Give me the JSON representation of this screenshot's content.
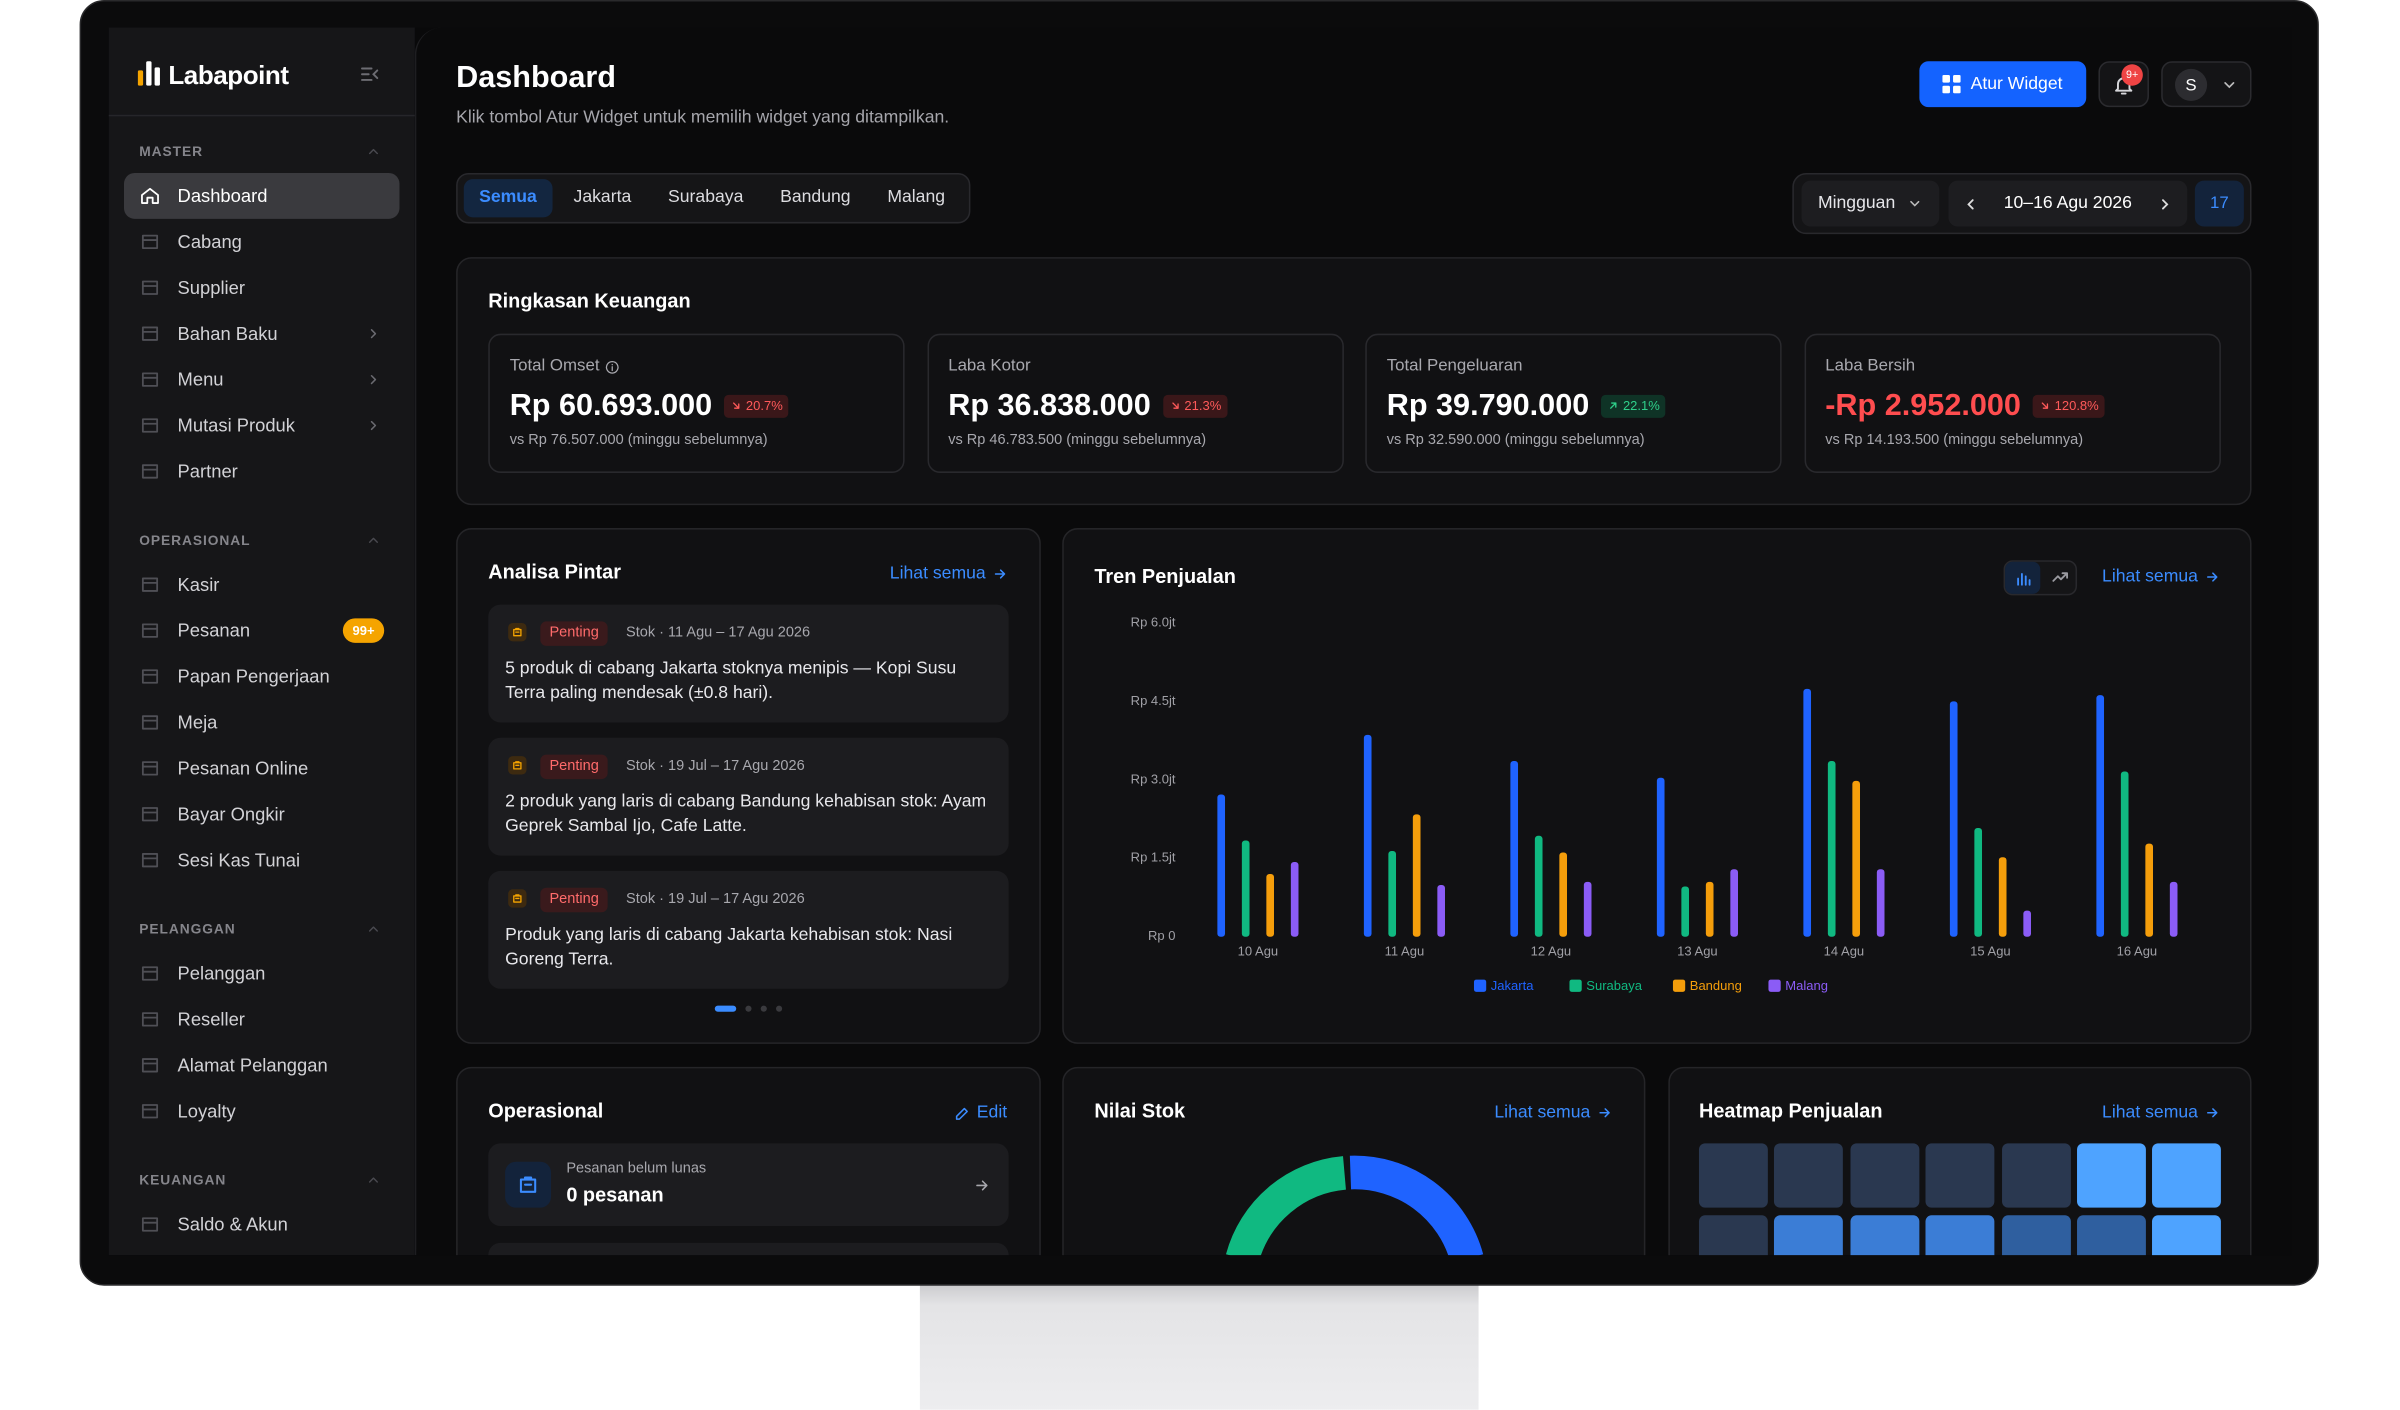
{
  "sidebar": {
    "brand": "Labapoint",
    "sections": [
      {
        "title": "MASTER",
        "items": [
          {
            "label": "Dashboard",
            "active": true
          },
          {
            "label": "Cabang"
          },
          {
            "label": "Supplier"
          },
          {
            "label": "Bahan Baku",
            "submenu": true
          },
          {
            "label": "Menu",
            "submenu": true
          },
          {
            "label": "Mutasi Produk",
            "submenu": true
          },
          {
            "label": "Partner"
          }
        ]
      },
      {
        "title": "OPERASIONAL",
        "items": [
          {
            "label": "Kasir"
          },
          {
            "label": "Pesanan",
            "badge": "99+"
          },
          {
            "label": "Papan Pengerjaan"
          },
          {
            "label": "Meja"
          },
          {
            "label": "Pesanan Online"
          },
          {
            "label": "Bayar Ongkir"
          },
          {
            "label": "Sesi Kas Tunai"
          }
        ]
      },
      {
        "title": "PELANGGAN",
        "items": [
          {
            "label": "Pelanggan"
          },
          {
            "label": "Reseller"
          },
          {
            "label": "Alamat Pelanggan"
          },
          {
            "label": "Loyalty"
          }
        ]
      },
      {
        "title": "KEUANGAN",
        "items": [
          {
            "label": "Saldo & Akun"
          }
        ]
      }
    ]
  },
  "header": {
    "title": "Dashboard",
    "subtitle": "Klik tombol Atur Widget untuk memilih widget yang ditampilkan.",
    "button": "Atur Widget",
    "notification_badge": "9+",
    "avatar": "S"
  },
  "filters": {
    "tabs": [
      "Semua",
      "Jakarta",
      "Surabaya",
      "Bandung",
      "Malang"
    ],
    "active_tab": 0,
    "period": "Mingguan",
    "range": "10–16 Agu 2026",
    "calendar": "17"
  },
  "summary": {
    "title": "Ringkasan Keuangan",
    "cards": [
      {
        "label": "Total Omset",
        "info": true,
        "value": "Rp 60.693.000",
        "change": "20.7%",
        "trend": "down",
        "comparison": "vs Rp 76.507.000 (minggu sebelumnya)"
      },
      {
        "label": "Laba Kotor",
        "value": "Rp 36.838.000",
        "change": "21.3%",
        "trend": "down",
        "comparison": "vs Rp 46.783.500 (minggu sebelumnya)"
      },
      {
        "label": "Total Pengeluaran",
        "value": "Rp 39.790.000",
        "change": "22.1%",
        "trend": "up",
        "comparison": "vs Rp 32.590.000 (minggu sebelumnya)"
      },
      {
        "label": "Laba Bersih",
        "value": "-Rp 2.952.000",
        "negative": true,
        "change": "120.8%",
        "trend": "down",
        "comparison": "vs Rp 14.193.500 (minggu sebelumnya)"
      }
    ]
  },
  "insights": {
    "title": "Analisa Pintar",
    "link": "Lihat semua",
    "items": [
      {
        "tag": "Penting",
        "meta": "Stok · 11 Agu – 17 Agu 2026",
        "text": "5 produk di cabang Jakarta stoknya menipis — Kopi Susu Terra paling mendesak (±0.8 hari)."
      },
      {
        "tag": "Penting",
        "meta": "Stok · 19 Jul – 17 Agu 2026",
        "text": "2 produk yang laris di cabang Bandung kehabisan stok: Ayam Geprek Sambal Ijo, Cafe Latte."
      },
      {
        "tag": "Penting",
        "meta": "Stok · 19 Jul – 17 Agu 2026",
        "text": "Produk yang laris di cabang Jakarta kehabisan stok: Nasi Goreng Terra."
      }
    ],
    "pages": 4,
    "active_page": 0
  },
  "chart_data": {
    "type": "bar",
    "title": "Tren Penjualan",
    "link": "Lihat semua",
    "categories": [
      "10 Agu",
      "11 Agu",
      "12 Agu",
      "13 Agu",
      "14 Agu",
      "15 Agu",
      "16 Agu"
    ],
    "series": [
      {
        "name": "Jakarta",
        "color": "#1f63ff",
        "values": [
          2.72,
          3.86,
          3.36,
          3.04,
          4.74,
          4.5,
          4.62
        ]
      },
      {
        "name": "Surabaya",
        "color": "#10b981",
        "values": [
          1.84,
          1.64,
          1.93,
          0.96,
          3.36,
          2.08,
          3.16
        ]
      },
      {
        "name": "Bandung",
        "color": "#f59e0b",
        "values": [
          1.2,
          2.34,
          1.61,
          1.05,
          2.98,
          1.52,
          1.78
        ]
      },
      {
        "name": "Malang",
        "color": "#8b5cf6",
        "values": [
          1.43,
          0.99,
          1.05,
          1.29,
          1.29,
          0.5,
          1.05
        ]
      }
    ],
    "ylim": [
      0,
      6
    ],
    "yticks": [
      {
        "value": 0,
        "label": "Rp 0"
      },
      {
        "value": 1.5,
        "label": "Rp 1.5jt"
      },
      {
        "value": 3,
        "label": "Rp 3.0jt"
      },
      {
        "value": 4.5,
        "label": "Rp 4.5jt"
      },
      {
        "value": 6,
        "label": "Rp 6.0jt"
      }
    ],
    "grid": false,
    "legend": "bottom"
  },
  "operations": {
    "title": "Operasional",
    "link": "Edit",
    "items": [
      {
        "label": "Pesanan belum lunas",
        "value": "0 pesanan"
      }
    ]
  },
  "stock": {
    "title": "Nilai Stok",
    "link": "Lihat semua"
  },
  "heatmap": {
    "title": "Heatmap Penjualan",
    "link": "Lihat semua"
  }
}
